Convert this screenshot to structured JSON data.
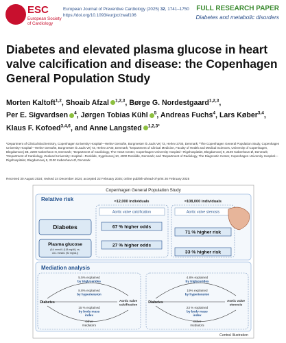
{
  "header": {
    "logo": "ESC",
    "society": [
      "European Society",
      "of Cardiology"
    ],
    "journal": "European Journal of Preventive Cardiology (2025)",
    "volume": "32",
    "pages": ", 1741–1750",
    "doi": "https://doi.org/10.1093/eurjpc/zwaf106",
    "article_type": "FULL RESEARCH PAPER",
    "section": "Diabetes and metabolic disorders"
  },
  "title": "Diabetes and elevated plasma glucose in heart valve calcification and disease: the Copenhagen General Population Study",
  "authors": [
    {
      "name": "Morten Kaltoft",
      "sup": "1,2",
      "after": ","
    },
    {
      "name": "Shoaib Afzal",
      "sup": "1,2,3",
      "after": ","
    },
    {
      "name": "Børge G. Nordestgaard",
      "sup": "1,2,3",
      "after": ","
    },
    {
      "name": "Per E. Sigvardsen",
      "sup": "4",
      "after": ","
    },
    {
      "name": "Jørgen Tobias Kühl",
      "sup": "5",
      "after": ","
    },
    {
      "name": "Andreas Fuchs",
      "sup": "4",
      "after": ","
    },
    {
      "name": "Lars Køber",
      "sup": "3,4",
      "after": ","
    },
    {
      "name": "Klaus F. Kofoed",
      "sup": "3,4,6",
      "after": ","
    },
    {
      "name": "and Anne Langsted",
      "sup": "1,2,3*",
      "after": ""
    }
  ],
  "affiliations": "¹Department of Clinical Biochemistry, Copenhagen University Hospital—Herlev Gentofte, Borgmester Ib Juuls Vej 73, Herlev 2730, Denmark; ²The Copenhagen General Population Study, Copenhagen University Hospital—Herlev Gentofte, Borgmester Ib Juuls Vej 73, Herlev 2730, Denmark; ³Department of Clinical Medicine, Faculty of Health and Medical Sciences, University of Copenhagen, Blegdamsvej 3B, 2200 København N, Denmark; ⁴Department of Cardiology, The Heart Center, Copenhagen University Hospital—Rigshospitalet, Blegdamsvej 9, 2100 København Ø, Denmark; ⁵Department of Cardiology, Zealand University Hospital—Roskilde, Sygehusvej 10, 4000 Roskilde, Denmark; and ⁶Department of Radiology, The Diagnostic Center, Copenhagen University Hospital—Rigshospitalet, Blegdamsvej 9, 2100 København Ø, Denmark",
  "received": "Received 30 August 2024; revised 24 December 2024; accepted 22 February 2025; online publish-ahead-of-print 26 February 2025",
  "figure": {
    "title": "Copenhagen General Population Study",
    "relative_risk": "Relative risk",
    "n_left": "≈12,000 individuals",
    "n_right": "≈108,000 individuals",
    "col_left": "Aortic valve calcification",
    "col_right": "Aortic valve stenosis",
    "row1": "Diabetes",
    "row1_left": "67 % higher odds",
    "row1_right": "71 % higher risk",
    "row2": "Plasma glucose",
    "row2_note": [
      "(6.4 mmol/L (118 mg/dL) vs.",
      "≤5.1 mmol/L (92 mg/dL))"
    ],
    "row2_left": "27 % higher odds",
    "row2_right": "33 % higher risk",
    "mediation": "Mediation analysis",
    "med_left": {
      "tg": [
        "5.5% explained",
        "by triglycerides"
      ],
      "ht": [
        "8.8% explained",
        "by hypertension"
      ],
      "bmi": [
        "15 % explained",
        "by body mass",
        "index"
      ],
      "other": [
        "Other",
        "mediators"
      ],
      "exposure": "Diabetes",
      "outcome": [
        "Aortic valve",
        "calcification"
      ]
    },
    "med_right": {
      "tg": [
        "4.8% explained",
        "by triglycerides"
      ],
      "ht": [
        "19% explained",
        "by hypertension"
      ],
      "bmi": [
        "23 % explained",
        "by body mass",
        "index"
      ],
      "other": [
        "Other",
        "mediators"
      ],
      "exposure": "Diabetes",
      "outcome": [
        "Aortic valve",
        "stenosis"
      ]
    },
    "caption": "Central Illustration"
  }
}
